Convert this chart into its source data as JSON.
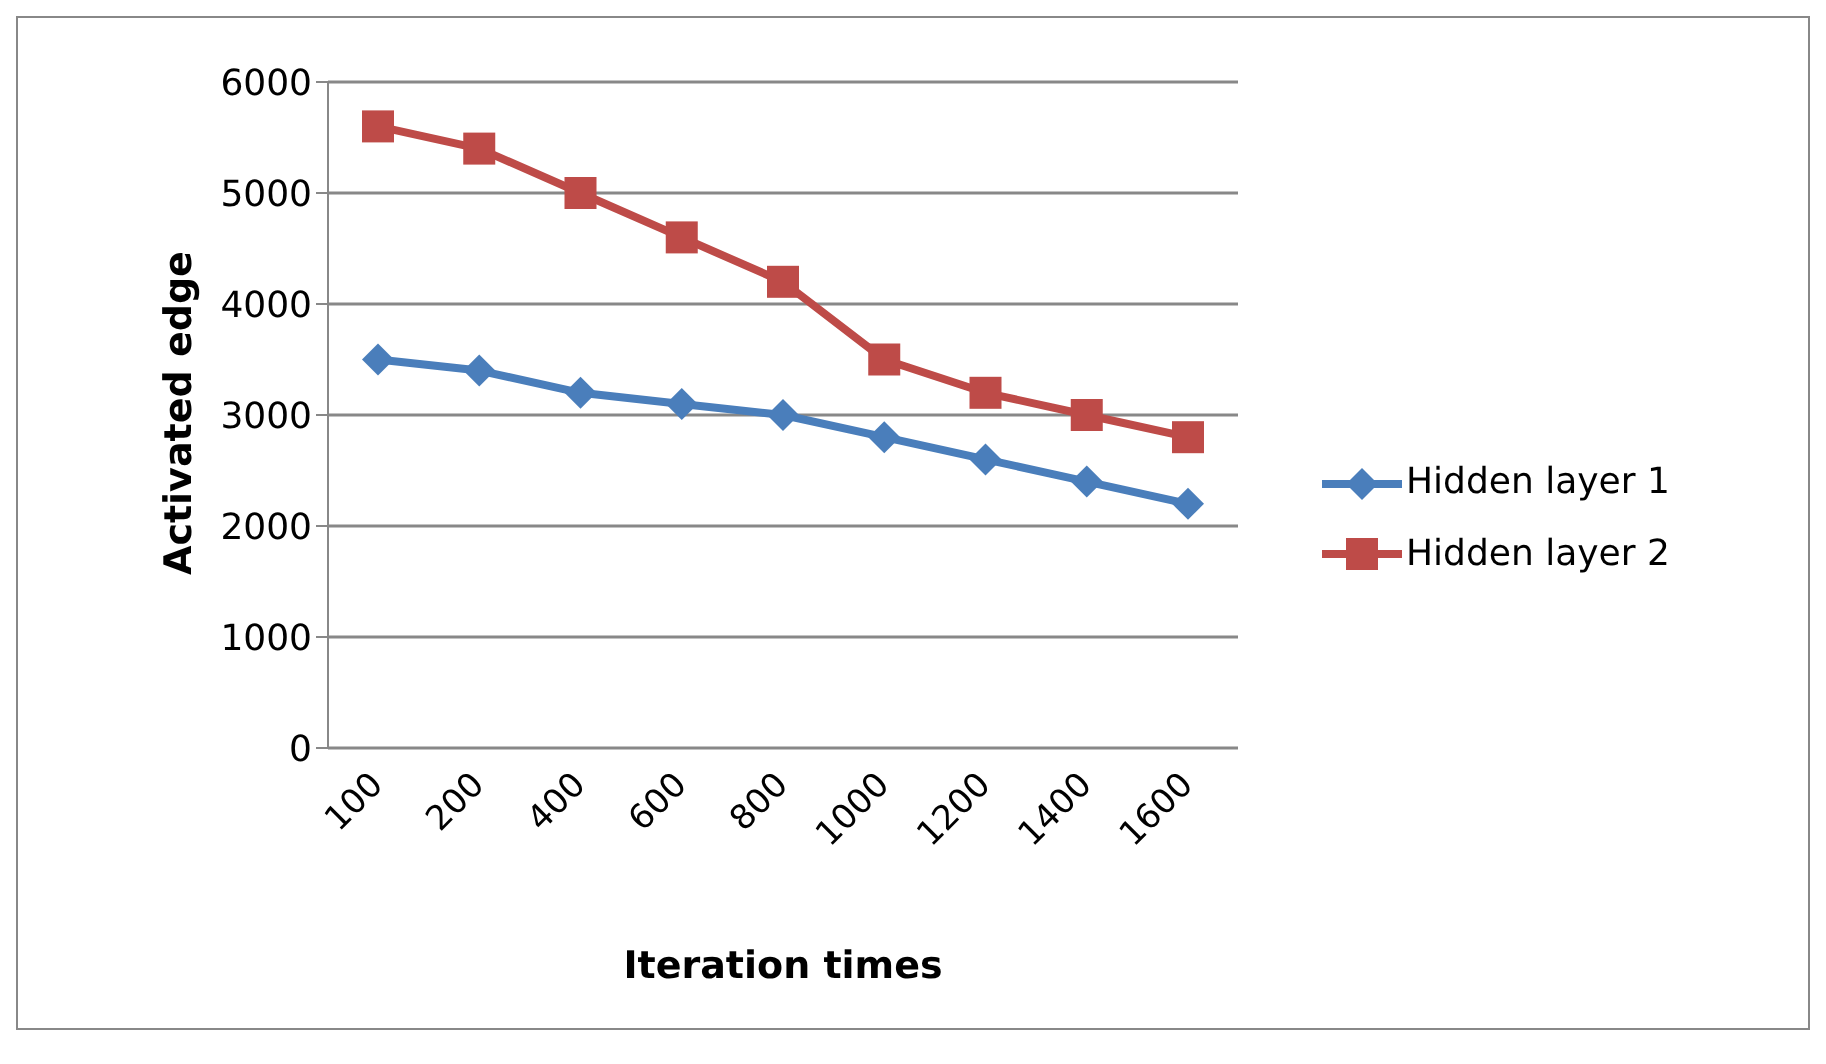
{
  "chart_data": {
    "type": "line",
    "xlabel": "Iteration times",
    "ylabel": "Activated edge",
    "categories": [
      "100",
      "200",
      "400",
      "600",
      "800",
      "1000",
      "1200",
      "1400",
      "1600"
    ],
    "series": [
      {
        "name": "Hidden layer 1",
        "color": "#4a7ebb",
        "marker": "diamond",
        "values": [
          3500,
          3400,
          3200,
          3100,
          3000,
          2800,
          2600,
          2400,
          2200
        ]
      },
      {
        "name": "Hidden layer 2",
        "color": "#be4b48",
        "marker": "square",
        "values": [
          5600,
          5400,
          5000,
          4600,
          4200,
          3500,
          3200,
          3000,
          2800
        ]
      }
    ],
    "ylim": [
      0,
      6000
    ],
    "yticks": [
      0,
      1000,
      2000,
      3000,
      4000,
      5000,
      6000
    ],
    "grid": "y",
    "legend": "right"
  }
}
